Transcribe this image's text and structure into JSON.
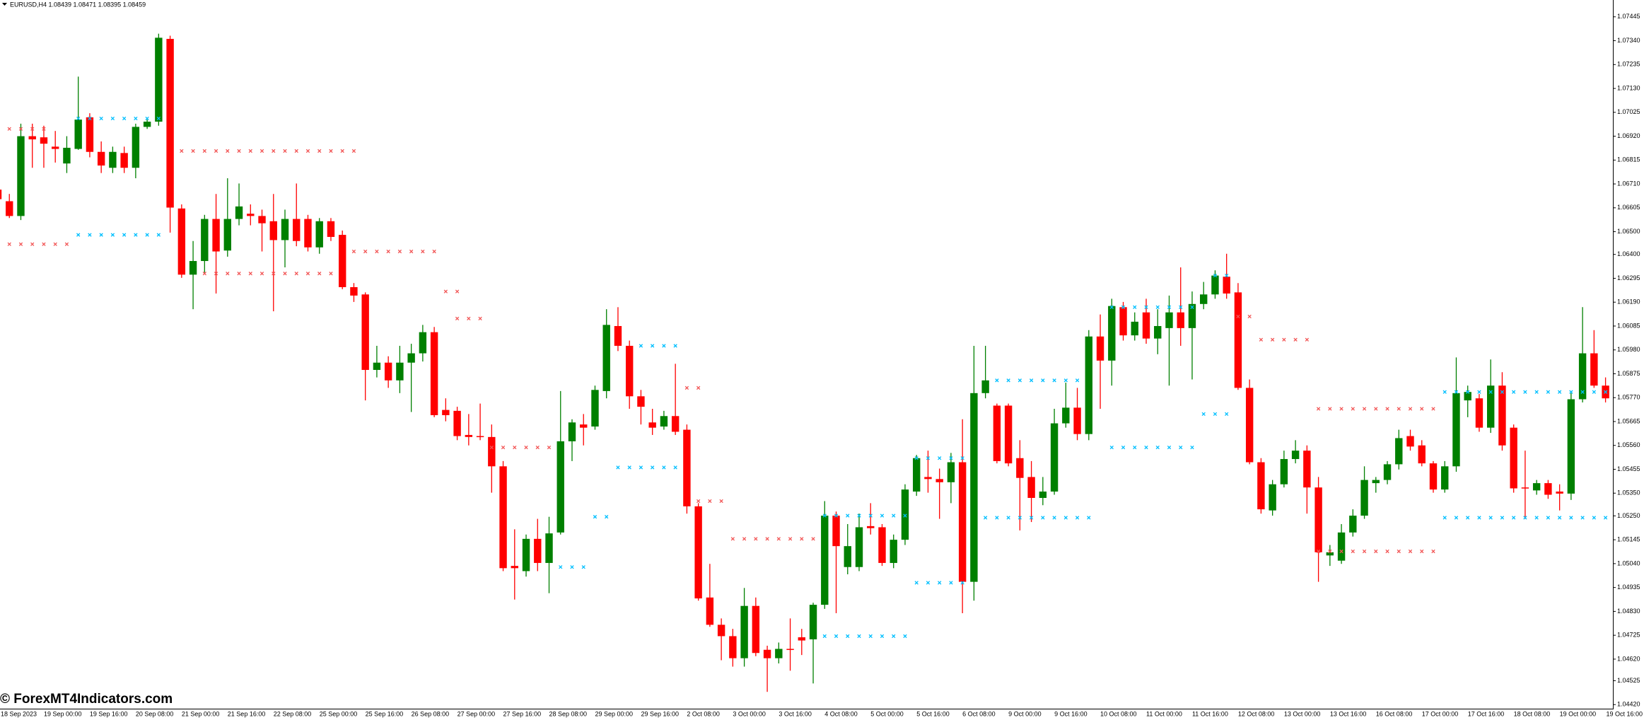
{
  "chart_data": {
    "type": "candlestick",
    "title": "EURUSD,H4  1.08439 1.08471 1.08395 1.08459",
    "watermark": "© ForexMT4Indicators.com",
    "up_color": "#008000",
    "down_color": "#ff0000",
    "ylim": [
      1.04402,
      1.07519
    ],
    "yticks": [
      1.07445,
      {
        "value": 1.0734,
        "label": "1.07340"
      },
      1.07235,
      {
        "value": 1.0713,
        "label": "1.07130"
      },
      1.07025,
      {
        "value": 1.0692,
        "label": "1.06920"
      },
      1.06815,
      {
        "value": 1.0671,
        "label": "1.06710"
      },
      1.06605,
      {
        "value": 1.065,
        "label": "1.06500"
      },
      {
        "value": 1.064,
        "label": "1.06400"
      },
      1.06295,
      {
        "value": 1.0619,
        "label": "1.06190"
      },
      1.06085,
      {
        "value": 1.0598,
        "label": "1.05980"
      },
      1.05875,
      {
        "value": 1.0577,
        "label": "1.05770"
      },
      1.05665,
      {
        "value": 1.0556,
        "label": "1.05560"
      },
      1.05455,
      {
        "value": 1.0535,
        "label": "1.05350"
      },
      {
        "value": 1.0525,
        "label": "1.05250"
      },
      1.05145,
      {
        "value": 1.0504,
        "label": "1.05040"
      },
      1.04935,
      {
        "value": 1.0483,
        "label": "1.04830"
      },
      1.04725,
      {
        "value": 1.0462,
        "label": "1.04620"
      },
      1.04525,
      {
        "value": 1.0442,
        "label": "1.04420"
      }
    ],
    "categories": [
      "18 Sep 2023",
      null,
      null,
      null,
      "19 Sep 00:00",
      null,
      null,
      null,
      "19 Sep 16:00",
      null,
      null,
      null,
      "20 Sep 08:00",
      null,
      null,
      null,
      "21 Sep 00:00",
      null,
      null,
      null,
      "21 Sep 16:00",
      null,
      null,
      null,
      "22 Sep 08:00",
      null,
      null,
      null,
      "25 Sep 00:00",
      null,
      null,
      null,
      "25 Sep 16:00",
      null,
      null,
      null,
      "26 Sep 08:00",
      null,
      null,
      null,
      "27 Sep 00:00",
      null,
      null,
      null,
      "27 Sep 16:00",
      null,
      null,
      null,
      "28 Sep 08:00",
      null,
      null,
      null,
      "29 Sep 00:00",
      null,
      null,
      null,
      "29 Sep 16:00",
      null,
      null,
      null,
      "2 Oct 08:00",
      null,
      null,
      null,
      "3 Oct 00:00",
      null,
      null,
      null,
      "3 Oct 16:00",
      null,
      null,
      null,
      "4 Oct 08:00",
      null,
      null,
      null,
      "5 Oct 00:00",
      null,
      null,
      null,
      "5 Oct 16:00",
      null,
      null,
      null,
      "6 Oct 08:00",
      null,
      null,
      null,
      "9 Oct 00:00",
      null,
      null,
      null,
      "9 Oct 16:00",
      null,
      null,
      null,
      "10 Oct 08:00",
      null,
      null,
      null,
      "11 Oct 00:00",
      null,
      null,
      null,
      "11 Oct 16:00",
      null,
      null,
      null,
      "12 Oct 08:00",
      null,
      null,
      null,
      "13 Oct 00:00",
      null,
      null,
      null,
      "13 Oct 16:00",
      null,
      null,
      null,
      "16 Oct 08:00",
      null,
      null,
      null,
      "17 Oct 00:00",
      null,
      null,
      null,
      "17 Oct 16:00",
      null,
      null,
      null,
      "18 Oct 08:00",
      null,
      null,
      null,
      "19 Oct 00:00",
      null,
      null,
      null,
      "19 Oct 16:00"
    ],
    "values": [
      [
        1.06685,
        1.06698,
        1.06629,
        1.06643
      ],
      [
        1.06634,
        1.06666,
        1.0656,
        1.06569
      ],
      [
        1.06569,
        1.06975,
        1.06551,
        1.0692
      ],
      [
        1.0692,
        1.06975,
        1.06781,
        1.06906
      ],
      [
        1.06915,
        1.06966,
        1.06781,
        1.06887
      ],
      [
        1.06874,
        1.06943,
        1.06804,
        1.06864
      ],
      [
        1.068,
        1.0692,
        1.06758,
        1.06869
      ],
      [
        1.06864,
        1.07182,
        1.0686,
        1.06993
      ],
      [
        1.07003,
        1.07021,
        1.06827,
        1.06851
      ],
      [
        1.06851,
        1.06897,
        1.06758,
        1.06791
      ],
      [
        1.06781,
        1.06874,
        1.06758,
        1.06851
      ],
      [
        1.06846,
        1.06874,
        1.06758,
        1.06781
      ],
      [
        1.06781,
        1.06975,
        1.06735,
        1.06961
      ],
      [
        1.06961,
        1.06993,
        1.06952,
        1.06984
      ],
      [
        1.06984,
        1.07371,
        1.06966,
        1.07353
      ],
      [
        1.07348,
        1.07362,
        1.06496,
        1.06606
      ],
      [
        1.06602,
        1.0662,
        1.06297,
        1.06311
      ],
      [
        1.06311,
        1.06459,
        1.06159,
        1.06371
      ],
      [
        1.06371,
        1.06574,
        1.0632,
        1.06556
      ],
      [
        1.06556,
        1.06666,
        1.06228,
        1.06413
      ],
      [
        1.06417,
        1.06735,
        1.0639,
        1.06556
      ],
      [
        1.06556,
        1.06712,
        1.06528,
        1.06611
      ],
      [
        1.06579,
        1.0662,
        1.06528,
        1.06569
      ],
      [
        1.06569,
        1.06597,
        1.06413,
        1.06537
      ],
      [
        1.06546,
        1.06666,
        1.0615,
        1.06463
      ],
      [
        1.06463,
        1.06597,
        1.06343,
        1.06556
      ],
      [
        1.06556,
        1.06712,
        1.06436,
        1.06459
      ],
      [
        1.06556,
        1.06574,
        1.06413,
        1.06431
      ],
      [
        1.06431,
        1.0656,
        1.06403,
        1.06546
      ],
      [
        1.06546,
        1.0656,
        1.06459,
        1.06477
      ],
      [
        1.06486,
        1.06505,
        1.06247,
        1.06256
      ],
      [
        1.06256,
        1.06274,
        1.06191,
        1.06219
      ],
      [
        1.06224,
        1.06233,
        1.05758,
        1.05892
      ],
      [
        1.05892,
        1.05998,
        1.05859,
        1.05924
      ],
      [
        1.05924,
        1.05952,
        1.05813,
        1.05846
      ],
      [
        1.05846,
        1.05998,
        1.0579,
        1.05924
      ],
      [
        1.05924,
        1.06007,
        1.05707,
        1.05965
      ],
      [
        1.05965,
        1.0609,
        1.05929,
        1.06058
      ],
      [
        1.06058,
        1.06081,
        1.05684,
        1.05693
      ],
      [
        1.05716,
        1.05767,
        1.05666,
        1.05693
      ],
      [
        1.05712,
        1.0573,
        1.05583,
        1.05601
      ],
      [
        1.05606,
        1.05698,
        1.0556,
        1.05597
      ],
      [
        1.05601,
        1.05744,
        1.05583,
        1.05597
      ],
      [
        1.05597,
        1.05652,
        1.05352,
        1.05468
      ],
      [
        1.05468,
        1.05491,
        1.05007,
        1.0502
      ],
      [
        1.0503,
        1.05191,
        1.04882,
        1.0502
      ],
      [
        1.05007,
        1.05168,
        1.04983,
        1.05149
      ],
      [
        1.05149,
        1.05237,
        1.05007,
        1.05043
      ],
      [
        1.05043,
        1.05246,
        1.0491,
        1.05173
      ],
      [
        1.05177,
        1.05799,
        1.05168,
        1.05578
      ],
      [
        1.05578,
        1.05675,
        1.05491,
        1.05661
      ],
      [
        1.05652,
        1.05698,
        1.0556,
        1.05638
      ],
      [
        1.05643,
        1.05823,
        1.05629,
        1.05804
      ],
      [
        1.05799,
        1.06159,
        1.05767,
        1.0609
      ],
      [
        1.06085,
        1.06168,
        1.05975,
        1.05998
      ],
      [
        1.05998,
        1.06021,
        1.05721,
        1.05776
      ],
      [
        1.05776,
        1.05804,
        1.05652,
        1.0573
      ],
      [
        1.05661,
        1.05721,
        1.05606,
        1.05638
      ],
      [
        1.05643,
        1.05712,
        1.05629,
        1.05689
      ],
      [
        1.05689,
        1.05919,
        1.05606,
        1.0562
      ],
      [
        1.05629,
        1.05652,
        1.0526,
        1.05292
      ],
      [
        1.05292,
        1.05306,
        1.04877,
        1.04887
      ],
      [
        1.04891,
        1.05039,
        1.04762,
        1.04771
      ],
      [
        1.04771,
        1.04799,
        1.04615,
        1.04721
      ],
      [
        1.04721,
        1.04753,
        1.04587,
        1.04624
      ],
      [
        1.04624,
        1.04933,
        1.04587,
        1.04854
      ],
      [
        1.04854,
        1.04891,
        1.04633,
        1.04647
      ],
      [
        1.04661,
        1.04679,
        1.04476,
        1.04624
      ],
      [
        1.04624,
        1.04693,
        1.04601,
        1.04665
      ],
      [
        1.04665,
        1.04799,
        1.04569,
        1.04661
      ],
      [
        1.04716,
        1.04753,
        1.04638,
        1.04702
      ],
      [
        1.04707,
        1.04868,
        1.04513,
        1.04859
      ],
      [
        1.04859,
        1.05315,
        1.04841,
        1.05251
      ],
      [
        1.05251,
        1.05269,
        1.04822,
        1.05117
      ],
      [
        1.05025,
        1.05214,
        1.04993,
        1.05117
      ],
      [
        1.05025,
        1.0526,
        1.05007,
        1.052
      ],
      [
        1.05205,
        1.05306,
        1.05168,
        1.05196
      ],
      [
        1.052,
        1.05214,
        1.0503,
        1.05043
      ],
      [
        1.05043,
        1.05168,
        1.0502,
        1.05145
      ],
      [
        1.05145,
        1.05389,
        1.05122,
        1.05366
      ],
      [
        1.05357,
        1.05518,
        1.05338,
        1.05504
      ],
      [
        1.05421,
        1.05537,
        1.05352,
        1.05412
      ],
      [
        1.05412,
        1.05458,
        1.05237,
        1.05398
      ],
      [
        1.05398,
        1.05527,
        1.05306,
        1.05486
      ],
      [
        1.05486,
        1.05675,
        1.04822,
        1.0496
      ],
      [
        1.0496,
        1.05998,
        1.04877,
        1.0579
      ],
      [
        1.0579,
        1.05998,
        1.05767,
        1.05846
      ],
      [
        1.05735,
        1.05744,
        1.05481,
        1.05491
      ],
      [
        1.05735,
        1.05744,
        1.05468,
        1.05481
      ],
      [
        1.05504,
        1.05583,
        1.05186,
        1.05417
      ],
      [
        1.05421,
        1.05491,
        1.05223,
        1.05329
      ],
      [
        1.05329,
        1.05421,
        1.05297,
        1.05357
      ],
      [
        1.05357,
        1.05721,
        1.05343,
        1.05657
      ],
      [
        1.05657,
        1.05836,
        1.05638,
        1.05726
      ],
      [
        1.05726,
        1.05813,
        1.05583,
        1.0561
      ],
      [
        1.0561,
        1.06067,
        1.05583,
        1.06039
      ],
      [
        1.06039,
        1.06136,
        1.05721,
        1.05933
      ],
      [
        1.05933,
        1.06205,
        1.05823,
        1.06173
      ],
      [
        1.06168,
        1.06191,
        1.06021,
        1.06044
      ],
      [
        1.06044,
        1.06145,
        1.06021,
        1.06104
      ],
      [
        1.06145,
        1.06205,
        1.06007,
        1.0603
      ],
      [
        1.0603,
        1.06159,
        1.05961,
        1.06085
      ],
      [
        1.06076,
        1.06219,
        1.05823,
        1.06145
      ],
      [
        1.06145,
        1.06343,
        1.05998,
        1.06076
      ],
      [
        1.06076,
        1.06237,
        1.0585,
        1.06182
      ],
      [
        1.06182,
        1.06279,
        1.06159,
        1.06224
      ],
      [
        1.06224,
        1.0633,
        1.06205,
        1.06307
      ],
      [
        1.06302,
        1.06403,
        1.06205,
        1.06228
      ],
      [
        1.06233,
        1.06274,
        1.05804,
        1.05813
      ],
      [
        1.05813,
        1.0585,
        1.05477,
        1.05486
      ],
      [
        1.05486,
        1.05504,
        1.0526,
        1.05279
      ],
      [
        1.05274,
        1.05408,
        1.05251,
        1.05389
      ],
      [
        1.05389,
        1.05537,
        1.05375,
        1.055
      ],
      [
        1.055,
        1.05583,
        1.05481,
        1.05537
      ],
      [
        1.05537,
        1.0556,
        1.0526,
        1.05375
      ],
      [
        1.05375,
        1.05421,
        1.0496,
        1.0509
      ],
      [
        1.05076,
        1.05122,
        1.0503,
        1.0509
      ],
      [
        1.05053,
        1.05214,
        1.05039,
        1.05177
      ],
      [
        1.05177,
        1.05279,
        1.05159,
        1.05251
      ],
      [
        1.05251,
        1.05468,
        1.05237,
        1.05408
      ],
      [
        1.05394,
        1.05421,
        1.05352,
        1.05408
      ],
      [
        1.05408,
        1.05491,
        1.05389,
        1.05477
      ],
      [
        1.05477,
        1.05629,
        1.05454,
        1.05592
      ],
      [
        1.05601,
        1.05629,
        1.05537,
        1.05555
      ],
      [
        1.0556,
        1.05583,
        1.05468,
        1.05481
      ],
      [
        1.05481,
        1.05491,
        1.05352,
        1.05366
      ],
      [
        1.05366,
        1.05491,
        1.05352,
        1.05468
      ],
      [
        1.05468,
        1.05947,
        1.05444,
        1.0579
      ],
      [
        1.05758,
        1.05823,
        1.05684,
        1.05795
      ],
      [
        1.05767,
        1.05786,
        1.0562,
        1.05638
      ],
      [
        1.05638,
        1.05938,
        1.05615,
        1.05823
      ],
      [
        1.05823,
        1.05882,
        1.05537,
        1.0556
      ],
      [
        1.05638,
        1.05652,
        1.05352,
        1.05371
      ],
      [
        1.05375,
        1.05537,
        1.05237,
        1.05371
      ],
      [
        1.05362,
        1.05408,
        1.05343,
        1.05394
      ],
      [
        1.05394,
        1.05408,
        1.05325,
        1.05343
      ],
      [
        1.05357,
        1.05389,
        1.05274,
        1.05348
      ],
      [
        1.05348,
        1.0579,
        1.0532,
        1.05763
      ],
      [
        1.05763,
        1.06168,
        1.05749,
        1.05965
      ],
      [
        1.05965,
        1.06067,
        1.05813,
        1.05823
      ],
      [
        1.05823,
        1.05859,
        1.05749,
        1.05767
      ]
    ],
    "levels": [
      {
        "color": "#f25555",
        "value": 1.06952,
        "from": 1,
        "to": 4
      },
      {
        "color": "#f25555",
        "value": 1.06445,
        "from": 1,
        "to": 6
      },
      {
        "color": "#f25555",
        "value": 1.06855,
        "from": 16,
        "to": 31
      },
      {
        "color": "#f25555",
        "value": 1.06316,
        "from": 18,
        "to": 29
      },
      {
        "color": "#f25555",
        "value": 1.06413,
        "from": 31,
        "to": 38
      },
      {
        "color": "#f25555",
        "value": 1.06237,
        "from": 39,
        "to": 40
      },
      {
        "color": "#f25555",
        "value": 1.06118,
        "from": 40,
        "to": 42
      },
      {
        "color": "#f25555",
        "value": 1.05551,
        "from": 43,
        "to": 48
      },
      {
        "color": "#f25555",
        "value": 1.05813,
        "from": 60,
        "to": 61
      },
      {
        "color": "#f25555",
        "value": 1.05315,
        "from": 61,
        "to": 63
      },
      {
        "color": "#f25555",
        "value": 1.05149,
        "from": 64,
        "to": 71
      },
      {
        "color": "#f25555",
        "value": 1.06127,
        "from": 108,
        "to": 109
      },
      {
        "color": "#f25555",
        "value": 1.06025,
        "from": 110,
        "to": 114
      },
      {
        "color": "#f25555",
        "value": 1.05721,
        "from": 115,
        "to": 125
      },
      {
        "color": "#f25555",
        "value": 1.05094,
        "from": 115,
        "to": 125
      },
      {
        "color": "#00bfff",
        "value": 1.06998,
        "from": 7,
        "to": 14
      },
      {
        "color": "#00bfff",
        "value": 1.06486,
        "from": 7,
        "to": 14
      },
      {
        "color": "#00bfff",
        "value": 1.05246,
        "from": 52,
        "to": 53
      },
      {
        "color": "#00bfff",
        "value": 1.05025,
        "from": 49,
        "to": 51
      },
      {
        "color": "#00bfff",
        "value": 1.05998,
        "from": 56,
        "to": 59
      },
      {
        "color": "#00bfff",
        "value": 1.05463,
        "from": 54,
        "to": 59
      },
      {
        "color": "#00bfff",
        "value": 1.04721,
        "from": 72,
        "to": 79
      },
      {
        "color": "#00bfff",
        "value": 1.05251,
        "from": 72,
        "to": 79
      },
      {
        "color": "#00bfff",
        "value": 1.04956,
        "from": 80,
        "to": 84
      },
      {
        "color": "#00bfff",
        "value": 1.05504,
        "from": 80,
        "to": 84
      },
      {
        "color": "#00bfff",
        "value": 1.05242,
        "from": 86,
        "to": 95
      },
      {
        "color": "#00bfff",
        "value": 1.05846,
        "from": 87,
        "to": 94
      },
      {
        "color": "#00bfff",
        "value": 1.05551,
        "from": 97,
        "to": 104
      },
      {
        "color": "#00bfff",
        "value": 1.06168,
        "from": 97,
        "to": 104
      },
      {
        "color": "#00bfff",
        "value": 1.05698,
        "from": 105,
        "to": 107
      },
      {
        "color": "#00bfff",
        "value": 1.06307,
        "from": 106,
        "to": 107
      },
      {
        "color": "#00bfff",
        "value": 1.05242,
        "from": 126,
        "to": 140
      },
      {
        "color": "#00bfff",
        "value": 1.05795,
        "from": 126,
        "to": 140
      }
    ]
  }
}
